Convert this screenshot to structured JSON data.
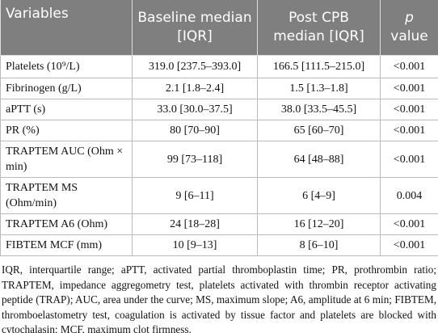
{
  "table": {
    "header": [
      "Variables",
      "Baseline median [IQR]",
      "Post CPB median [IQR]",
      {
        "italic": "p",
        "text": "value"
      }
    ],
    "rows": [
      [
        "Platelets (10⁹/L)",
        "319.0 [237.5–393.0]",
        "166.5 [111.5–215.0]",
        "<0.001"
      ],
      [
        "Fibrinogen (g/L)",
        "2.1 [1.8–2.4]",
        "1.5 [1.3–1.8]",
        "<0.001"
      ],
      [
        "aPTT (s)",
        "33.0 [30.0–37.5]",
        "38.0 [33.5–45.5]",
        "<0.001"
      ],
      [
        "PR (%)",
        "80 [70–90]",
        "65 [60–70]",
        "<0.001"
      ],
      [
        "TRAPTEM AUC (Ohm × min)",
        "99 [73–118]",
        "64 [48–88]",
        "<0.001"
      ],
      [
        "TRAPTEM MS (Ohm/min)",
        "9 [6–11]",
        "6 [4–9]",
        "0.004"
      ],
      [
        "TRAPTEM A6 (Ohm)",
        "24 [18–28]",
        "16 [12–20]",
        "<0.001"
      ],
      [
        "FIBTEM MCF (mm)",
        "10 [9–13]",
        "8 [6–10]",
        "<0.001"
      ]
    ]
  },
  "footnote": "IQR, interquartile range; aPTT, activated partial thromboplastin time; PR, prothrombin ratio; TRAPTEM, impedance aggregometry test, platelets activated with thrombin receptor activating peptide (TRAP); AUC, area under the curve; MS, maximum slope; A6, amplitude at 6 min; FIBTEM, thromboelastometry test, coagulation is activated by tissue factor and platelets are blocked with cytochalasin; MCF, maximum clot firmness."
}
